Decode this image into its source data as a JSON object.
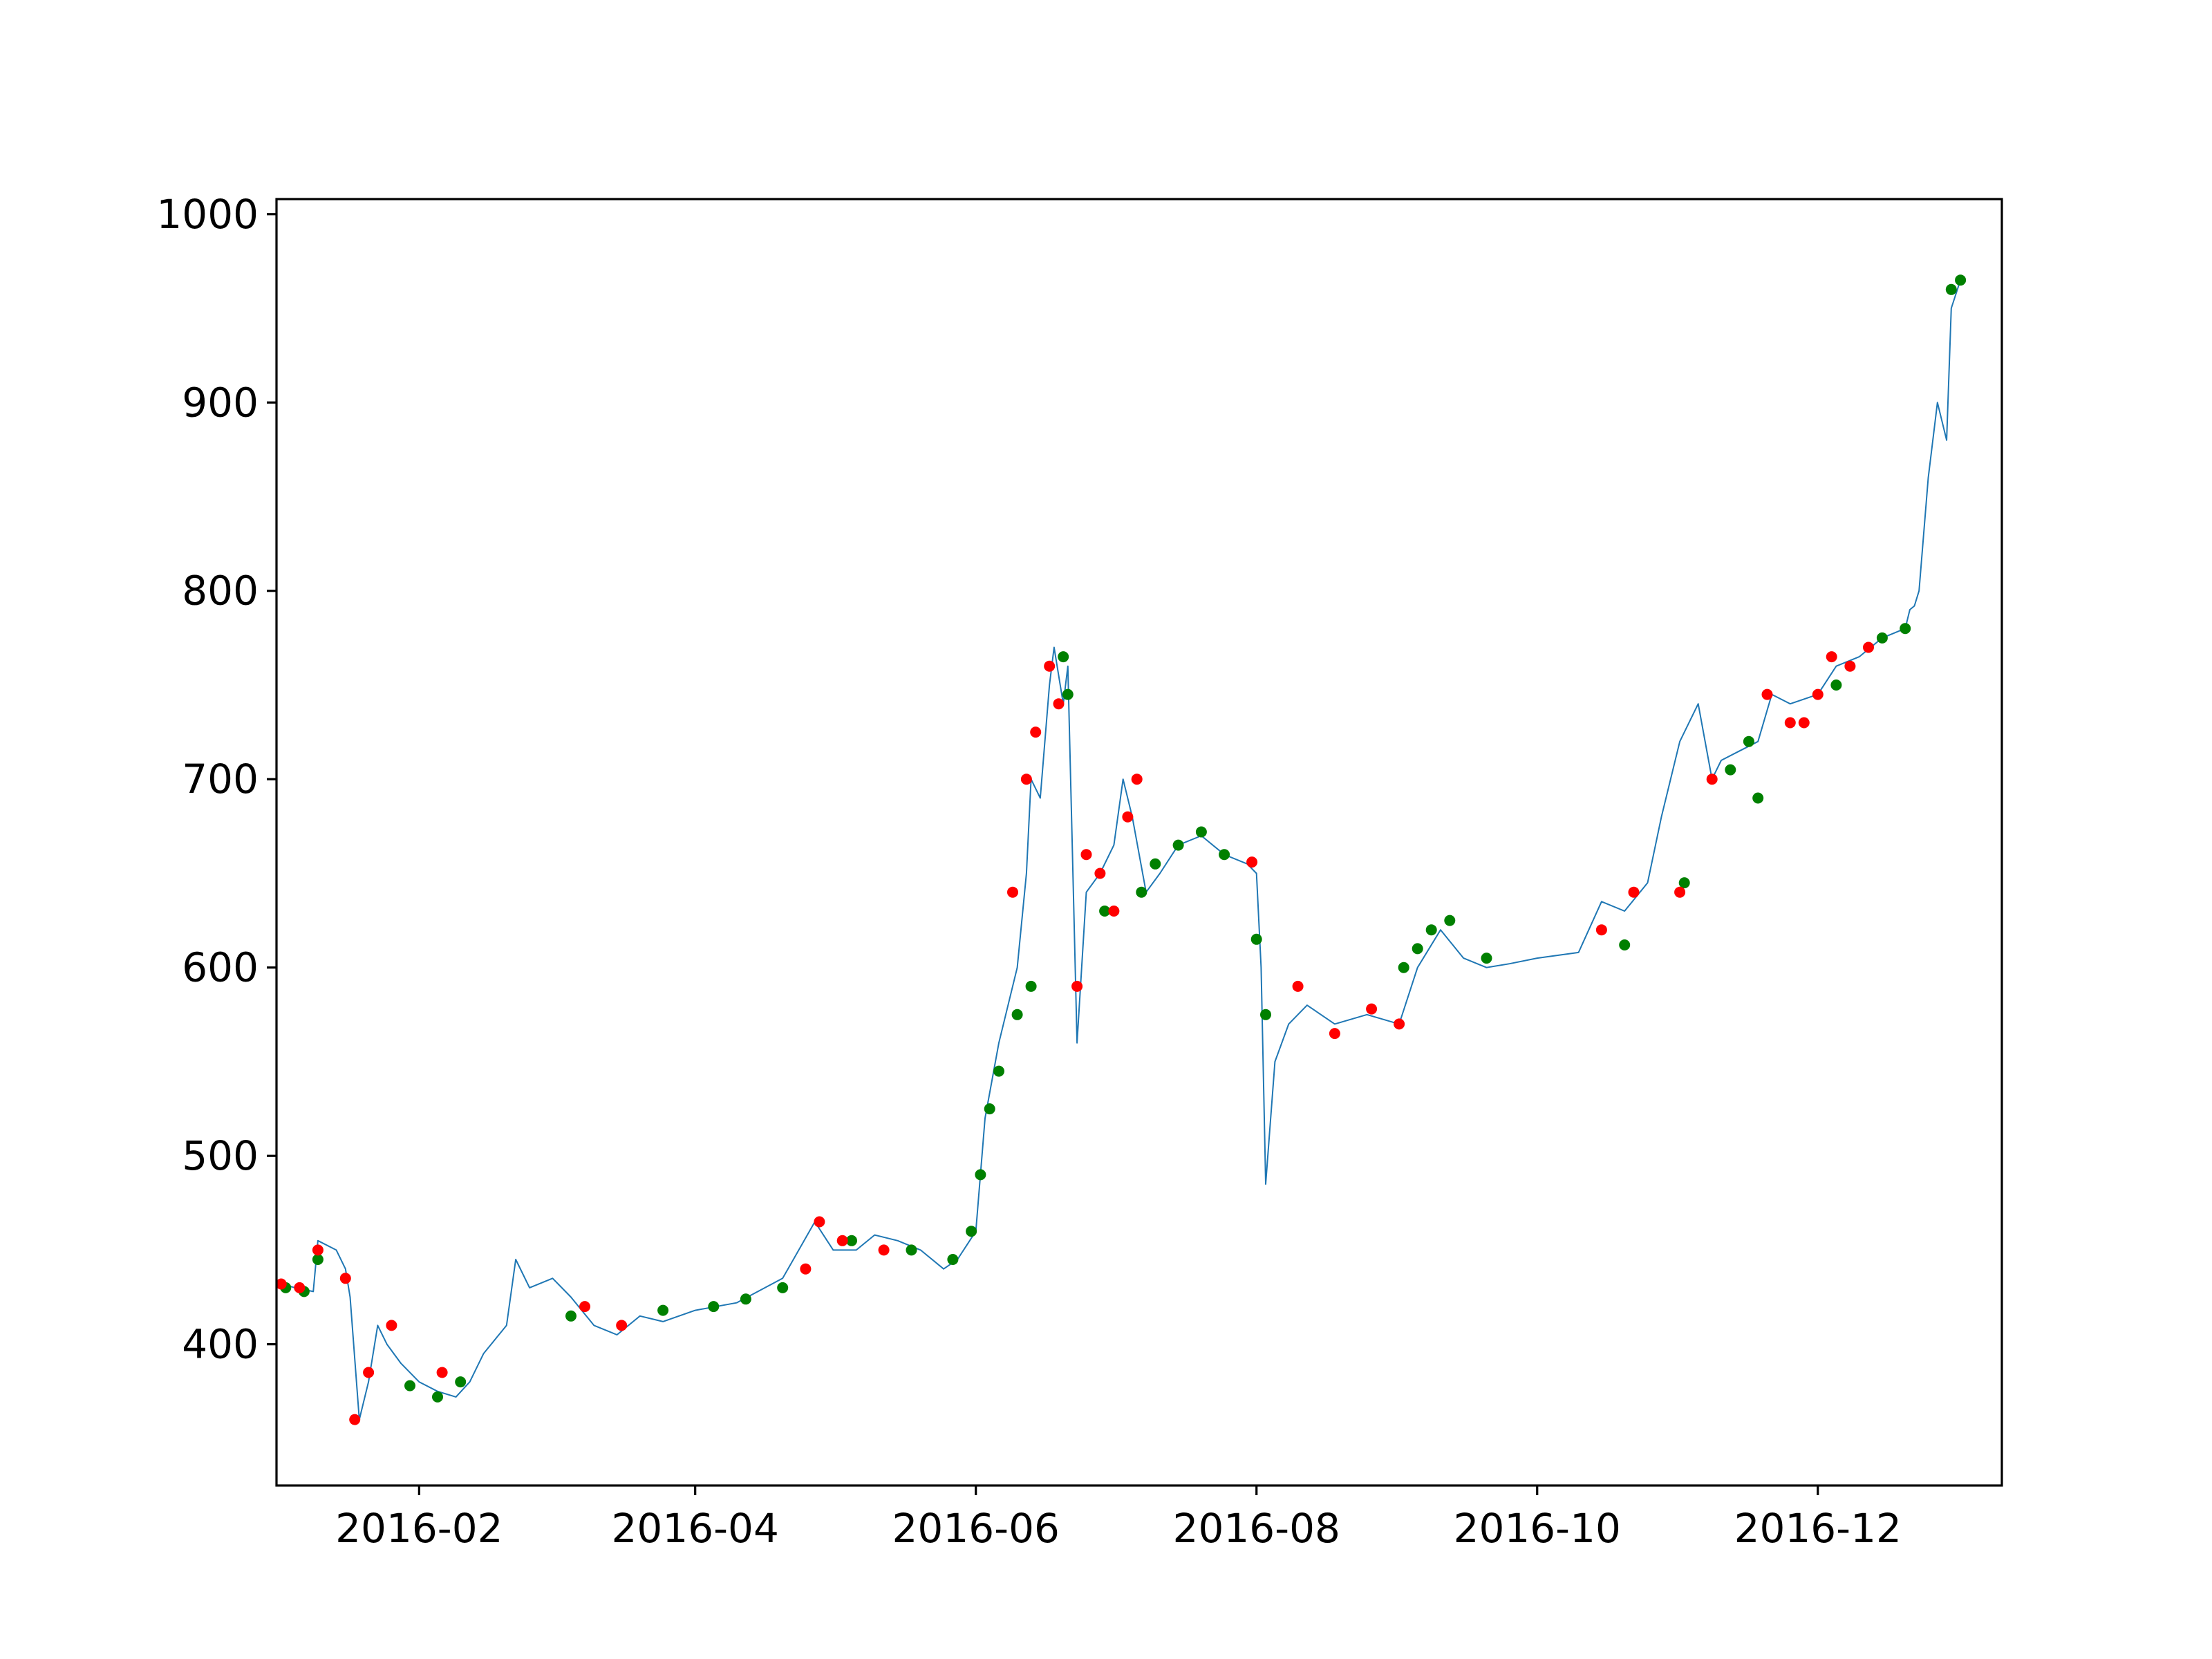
{
  "chart_data": {
    "type": "scatter",
    "title": "",
    "xlabel": "",
    "ylabel": "",
    "grid": false,
    "legend": "none",
    "xlim": [
      "2016-01-01",
      "2017-01-10"
    ],
    "ylim": [
      325,
      1008
    ],
    "x_ticks": [
      "2016-02-01",
      "2016-04-01",
      "2016-06-01",
      "2016-08-01",
      "2016-10-01",
      "2016-12-01"
    ],
    "x_tick_labels": [
      "2016-02",
      "2016-04",
      "2016-06",
      "2016-08",
      "2016-10",
      "2016-12"
    ],
    "y_ticks": [
      400,
      500,
      600,
      700,
      800,
      900,
      1000
    ],
    "y_tick_labels": [
      "400",
      "500",
      "600",
      "700",
      "800",
      "900",
      "1000"
    ],
    "colors": {
      "price_line": "#1f77b4",
      "up_marker": "#008000",
      "down_marker": "#ff0000"
    },
    "series": [
      {
        "kind": "line",
        "color": "#1f77b4",
        "x": [
          "2016-01-01",
          "2016-01-05",
          "2016-01-09",
          "2016-01-10",
          "2016-01-14",
          "2016-01-16",
          "2016-01-17",
          "2016-01-19",
          "2016-01-21",
          "2016-01-23",
          "2016-01-25",
          "2016-01-28",
          "2016-02-01",
          "2016-02-05",
          "2016-02-09",
          "2016-02-12",
          "2016-02-15",
          "2016-02-20",
          "2016-02-22",
          "2016-02-25",
          "2016-03-01",
          "2016-03-05",
          "2016-03-10",
          "2016-03-15",
          "2016-03-20",
          "2016-03-25",
          "2016-04-01",
          "2016-04-10",
          "2016-04-20",
          "2016-04-27",
          "2016-05-01",
          "2016-05-06",
          "2016-05-10",
          "2016-05-15",
          "2016-05-20",
          "2016-05-25",
          "2016-05-28",
          "2016-06-01",
          "2016-06-03",
          "2016-06-06",
          "2016-06-08",
          "2016-06-10",
          "2016-06-12",
          "2016-06-13",
          "2016-06-15",
          "2016-06-17",
          "2016-06-18",
          "2016-06-20",
          "2016-06-21",
          "2016-06-22",
          "2016-06-23",
          "2016-06-25",
          "2016-06-28",
          "2016-07-01",
          "2016-07-03",
          "2016-07-05",
          "2016-07-08",
          "2016-07-11",
          "2016-07-15",
          "2016-07-20",
          "2016-07-25",
          "2016-07-30",
          "2016-08-01",
          "2016-08-02",
          "2016-08-03",
          "2016-08-05",
          "2016-08-08",
          "2016-08-12",
          "2016-08-18",
          "2016-08-25",
          "2016-09-01",
          "2016-09-05",
          "2016-09-10",
          "2016-09-15",
          "2016-09-20",
          "2016-09-25",
          "2016-10-01",
          "2016-10-10",
          "2016-10-15",
          "2016-10-20",
          "2016-10-25",
          "2016-10-28",
          "2016-11-01",
          "2016-11-05",
          "2016-11-08",
          "2016-11-10",
          "2016-11-14",
          "2016-11-18",
          "2016-11-21",
          "2016-11-25",
          "2016-12-01",
          "2016-12-05",
          "2016-12-10",
          "2016-12-15",
          "2016-12-20",
          "2016-12-21",
          "2016-12-22",
          "2016-12-23",
          "2016-12-25",
          "2016-12-27",
          "2016-12-29",
          "2016-12-30",
          "2017-01-01"
        ],
        "y": [
          433,
          430,
          428,
          455,
          450,
          440,
          425,
          360,
          380,
          410,
          400,
          390,
          380,
          375,
          372,
          380,
          395,
          410,
          445,
          430,
          435,
          425,
          410,
          405,
          415,
          412,
          418,
          422,
          435,
          465,
          450,
          450,
          458,
          455,
          450,
          440,
          445,
          460,
          520,
          560,
          580,
          600,
          650,
          700,
          690,
          750,
          770,
          740,
          760,
          660,
          560,
          640,
          650,
          665,
          700,
          680,
          640,
          650,
          665,
          670,
          660,
          655,
          650,
          600,
          485,
          550,
          570,
          580,
          570,
          575,
          570,
          600,
          620,
          605,
          600,
          602,
          605,
          608,
          635,
          630,
          645,
          680,
          720,
          740,
          700,
          710,
          715,
          720,
          745,
          740,
          745,
          760,
          765,
          775,
          780,
          790,
          792,
          800,
          860,
          900,
          880,
          950,
          965
        ]
      },
      {
        "kind": "scatter",
        "name": "",
        "color": "#008000",
        "x": [
          "2016-01-03",
          "2016-01-07",
          "2016-01-10",
          "2016-01-30",
          "2016-02-05",
          "2016-02-10",
          "2016-03-05",
          "2016-03-25",
          "2016-04-05",
          "2016-04-12",
          "2016-04-20",
          "2016-05-05",
          "2016-05-18",
          "2016-05-27",
          "2016-05-31",
          "2016-06-02",
          "2016-06-04",
          "2016-06-06",
          "2016-06-10",
          "2016-06-13",
          "2016-06-20",
          "2016-06-21",
          "2016-06-29",
          "2016-07-07",
          "2016-07-10",
          "2016-07-15",
          "2016-07-20",
          "2016-07-25",
          "2016-08-01",
          "2016-08-03",
          "2016-09-02",
          "2016-09-05",
          "2016-09-08",
          "2016-09-12",
          "2016-09-20",
          "2016-10-20",
          "2016-11-02",
          "2016-11-12",
          "2016-11-16",
          "2016-11-18",
          "2016-12-05",
          "2016-12-15",
          "2016-12-20",
          "2016-12-30",
          "2017-01-01"
        ],
        "y": [
          430,
          428,
          445,
          378,
          372,
          380,
          415,
          418,
          420,
          424,
          430,
          455,
          450,
          445,
          460,
          490,
          525,
          545,
          575,
          590,
          765,
          745,
          630,
          640,
          655,
          665,
          672,
          660,
          615,
          575,
          600,
          610,
          620,
          625,
          605,
          612,
          645,
          705,
          720,
          690,
          750,
          775,
          780,
          960,
          965
        ]
      },
      {
        "kind": "scatter",
        "name": "",
        "color": "#ff0000",
        "x": [
          "2016-01-02",
          "2016-01-06",
          "2016-01-10",
          "2016-01-16",
          "2016-01-18",
          "2016-01-21",
          "2016-01-26",
          "2016-02-06",
          "2016-03-08",
          "2016-03-16",
          "2016-04-25",
          "2016-04-28",
          "2016-05-03",
          "2016-05-12",
          "2016-06-09",
          "2016-06-12",
          "2016-06-14",
          "2016-06-17",
          "2016-06-19",
          "2016-06-23",
          "2016-06-25",
          "2016-06-28",
          "2016-07-01",
          "2016-07-04",
          "2016-07-06",
          "2016-07-31",
          "2016-08-10",
          "2016-08-18",
          "2016-08-26",
          "2016-09-01",
          "2016-10-15",
          "2016-10-22",
          "2016-11-01",
          "2016-11-08",
          "2016-11-20",
          "2016-11-25",
          "2016-11-28",
          "2016-12-01",
          "2016-12-04",
          "2016-12-08",
          "2016-12-12"
        ],
        "y": [
          432,
          430,
          450,
          435,
          360,
          385,
          410,
          385,
          420,
          410,
          440,
          465,
          455,
          450,
          640,
          700,
          725,
          760,
          740,
          590,
          660,
          650,
          630,
          680,
          700,
          656,
          590,
          565,
          578,
          570,
          620,
          640,
          640,
          700,
          745,
          730,
          730,
          745,
          765,
          760,
          770
        ]
      }
    ]
  }
}
